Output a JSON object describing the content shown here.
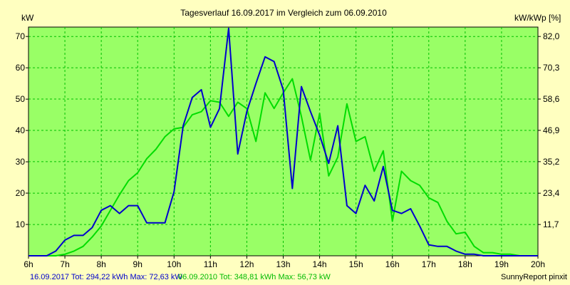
{
  "colors": {
    "background": "#ffffc0",
    "plot_background": "#99ff66",
    "grid": "#00c000",
    "series_2017": "#0000cc",
    "series_2010": "#00dd00"
  },
  "chart_data": {
    "type": "line",
    "title": "Tagesverlauf 16.09.2017 im Vergleich zum 06.09.2010",
    "ylabel_left": "kW",
    "ylabel_right": "kW/kWp [%]",
    "xlim": [
      6,
      20
    ],
    "ylim": [
      0,
      73
    ],
    "grid": true,
    "x_ticks": [
      6,
      7,
      8,
      9,
      10,
      11,
      12,
      13,
      14,
      15,
      16,
      17,
      18,
      19,
      20
    ],
    "x_tick_labels": [
      "6h",
      "7h",
      "8h",
      "9h",
      "10h",
      "11h",
      "12h",
      "13h",
      "14h",
      "15h",
      "16h",
      "17h",
      "18h",
      "19h",
      "20h"
    ],
    "y_ticks_left": [
      10,
      20,
      30,
      40,
      50,
      60,
      70
    ],
    "y_tick_labels_left": [
      "10",
      "20",
      "30",
      "40",
      "50",
      "60",
      "70"
    ],
    "y_ticks_right": [
      11.7,
      23.4,
      35.2,
      46.9,
      58.6,
      70.3,
      82.0
    ],
    "y_tick_labels_right": [
      "11,7",
      "23,4",
      "35,2",
      "46,9",
      "58,6",
      "70,3",
      "82,0"
    ],
    "series": [
      {
        "name": "16.09.2017",
        "summary": "16.09.2017 Tot: 294,22 kWh Max: 72,63 kW",
        "color": "#0000cc",
        "x": [
          6.0,
          6.25,
          6.5,
          6.75,
          7.0,
          7.25,
          7.5,
          7.75,
          8.0,
          8.25,
          8.5,
          8.75,
          9.0,
          9.25,
          9.5,
          9.75,
          10.0,
          10.25,
          10.5,
          10.75,
          11.0,
          11.25,
          11.5,
          11.75,
          12.0,
          12.25,
          12.5,
          12.75,
          13.0,
          13.25,
          13.5,
          13.75,
          14.0,
          14.25,
          14.5,
          14.75,
          15.0,
          15.25,
          15.5,
          15.75,
          16.0,
          16.25,
          16.5,
          16.75,
          17.0,
          17.25,
          17.5,
          17.75,
          18.0,
          18.25,
          18.5,
          18.75,
          19.0,
          19.25,
          19.5,
          19.75,
          20.0
        ],
        "y": [
          0,
          0,
          0,
          1.5,
          5,
          6.5,
          6.5,
          9,
          14.5,
          16,
          13.5,
          16,
          16,
          10.5,
          10.5,
          10.5,
          20.5,
          41.5,
          50.5,
          53,
          41,
          47,
          72.6,
          32.5,
          46,
          55,
          63.5,
          62,
          53,
          21.5,
          54,
          46,
          38.5,
          29.5,
          41.5,
          16,
          13.5,
          22.5,
          17.5,
          28.5,
          14.5,
          13.5,
          15,
          9.5,
          3.5,
          3,
          3,
          1.5,
          0.5,
          0.5,
          0,
          0,
          0,
          0,
          0,
          0,
          0
        ]
      },
      {
        "name": "06.09.2010",
        "summary": "06.09.2010 Tot: 348,81 kWh Max: 56,73 kW",
        "color": "#00dd00",
        "x": [
          6.0,
          6.25,
          6.5,
          6.75,
          7.0,
          7.25,
          7.5,
          7.75,
          8.0,
          8.25,
          8.5,
          8.75,
          9.0,
          9.25,
          9.5,
          9.75,
          10.0,
          10.25,
          10.5,
          10.75,
          11.0,
          11.25,
          11.5,
          11.75,
          12.0,
          12.25,
          12.5,
          12.75,
          13.0,
          13.25,
          13.5,
          13.75,
          14.0,
          14.25,
          14.5,
          14.75,
          15.0,
          15.25,
          15.5,
          15.75,
          16.0,
          16.25,
          16.5,
          16.75,
          17.0,
          17.25,
          17.5,
          17.75,
          18.0,
          18.25,
          18.5,
          18.75,
          19.0,
          19.25,
          19.5,
          19.75,
          20.0
        ],
        "y": [
          0,
          0,
          0,
          0,
          0.5,
          1.5,
          3,
          6,
          9.5,
          14.5,
          19.5,
          24,
          26.5,
          31,
          34,
          38,
          40.5,
          41,
          45,
          46,
          49.5,
          49,
          44.5,
          49,
          47,
          36.5,
          52,
          47,
          52,
          56.5,
          44.5,
          30.5,
          45.5,
          25.5,
          31.5,
          48.5,
          36.5,
          38,
          27,
          33.5,
          11,
          27,
          24,
          22.5,
          18.5,
          17,
          11,
          7,
          7.5,
          3,
          1,
          1,
          0.5,
          0.5,
          0,
          0,
          0
        ]
      }
    ],
    "footer_credit": "SunnyReport pinxit"
  }
}
